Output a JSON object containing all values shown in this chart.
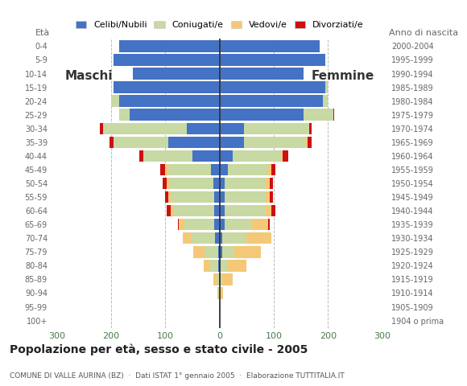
{
  "age_groups": [
    "100+",
    "95-99",
    "90-94",
    "85-89",
    "80-84",
    "75-79",
    "70-74",
    "65-69",
    "60-64",
    "55-59",
    "50-54",
    "45-49",
    "40-44",
    "35-39",
    "30-34",
    "25-29",
    "20-24",
    "15-19",
    "10-14",
    "5-9",
    "0-4"
  ],
  "birth_years": [
    "1904 o prima",
    "1905-1909",
    "1910-1914",
    "1915-1919",
    "1920-1924",
    "1925-1929",
    "1930-1934",
    "1935-1939",
    "1940-1944",
    "1945-1949",
    "1950-1954",
    "1955-1959",
    "1960-1964",
    "1965-1969",
    "1970-1974",
    "1975-1979",
    "1980-1984",
    "1985-1989",
    "1990-1994",
    "1995-1999",
    "2000-2004"
  ],
  "male_celibi": [
    0,
    0,
    0,
    1,
    2,
    3,
    8,
    10,
    10,
    10,
    12,
    15,
    50,
    95,
    60,
    165,
    185,
    195,
    160,
    195,
    185
  ],
  "male_coniugati": [
    0,
    0,
    2,
    5,
    15,
    25,
    45,
    55,
    75,
    80,
    80,
    80,
    90,
    100,
    155,
    20,
    15,
    0,
    0,
    0,
    0
  ],
  "male_vedovi": [
    0,
    0,
    2,
    5,
    12,
    20,
    15,
    10,
    5,
    5,
    5,
    5,
    0,
    0,
    0,
    0,
    0,
    0,
    0,
    0,
    0
  ],
  "male_divorziati": [
    0,
    0,
    0,
    0,
    0,
    0,
    0,
    2,
    8,
    5,
    8,
    10,
    8,
    8,
    5,
    0,
    0,
    0,
    0,
    0,
    0
  ],
  "female_celibi": [
    0,
    0,
    0,
    0,
    2,
    5,
    5,
    10,
    10,
    10,
    10,
    15,
    25,
    45,
    45,
    155,
    190,
    195,
    155,
    195,
    185
  ],
  "female_coniugati": [
    0,
    0,
    2,
    5,
    12,
    22,
    45,
    50,
    75,
    75,
    75,
    75,
    90,
    115,
    120,
    55,
    10,
    5,
    0,
    0,
    0
  ],
  "female_vedovi": [
    0,
    2,
    5,
    20,
    35,
    50,
    45,
    30,
    10,
    8,
    8,
    5,
    2,
    2,
    0,
    0,
    0,
    0,
    0,
    0,
    0
  ],
  "female_divorziati": [
    0,
    0,
    0,
    0,
    0,
    0,
    0,
    2,
    8,
    5,
    5,
    8,
    10,
    8,
    5,
    2,
    0,
    0,
    0,
    0,
    0
  ],
  "color_celibi": "#4472c4",
  "color_coniugati": "#c8d9a4",
  "color_vedovi": "#f5c878",
  "color_divorziati": "#cc1111",
  "xlim": 310,
  "title": "Popolazione per età, sesso e stato civile - 2005",
  "subtitle": "COMUNE DI VALLE AURINA (BZ)  ·  Dati ISTAT 1° gennaio 2005  ·  Elaborazione TUTTITALIA.IT",
  "legend_labels": [
    "Celibi/Nubili",
    "Coniugati/e",
    "Vedovi/e",
    "Divorziati/e"
  ],
  "label_eta": "Età",
  "label_anno": "Anno di nascita",
  "label_maschi": "Maschi",
  "label_femmine": "Femmine",
  "bg_color": "#ffffff",
  "grid_color": "#bbbbbb",
  "axis_color": "#4a7a4a",
  "bar_height": 0.85,
  "title_fontsize": 10,
  "subtitle_fontsize": 6.5
}
